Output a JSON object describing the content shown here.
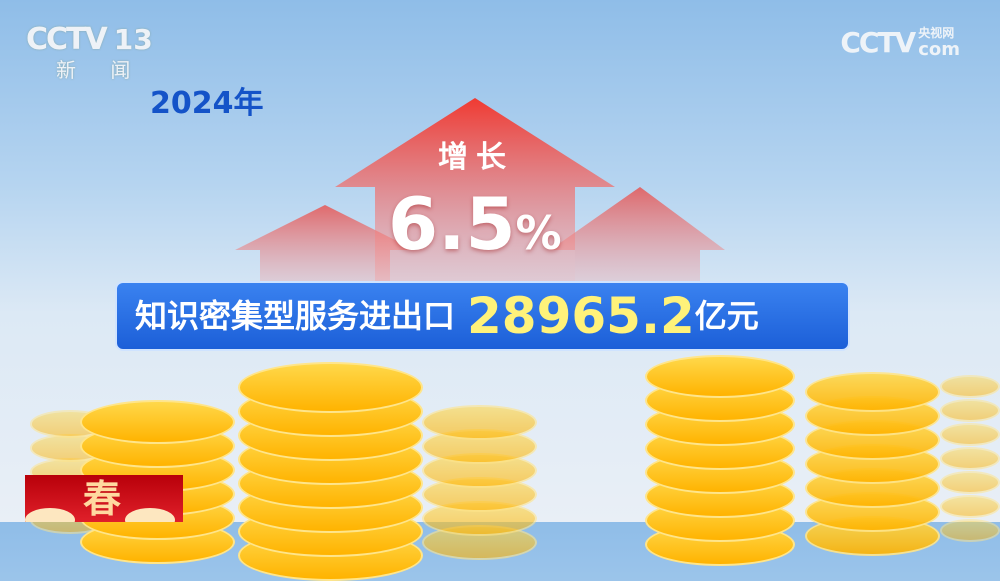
{
  "channel": {
    "logo": "CCTV",
    "number": "13",
    "name": "新 闻"
  },
  "watermark": {
    "logo": "CCTV",
    "site_cn": "央视网",
    "site": "com"
  },
  "year": "2024年",
  "growth": {
    "label": "增长",
    "value": "6.5",
    "unit": "%"
  },
  "headline": {
    "label": "知识密集型服务进出口",
    "value": "28965.2",
    "unit": "亿元"
  },
  "badge": {
    "glyph": "春"
  },
  "colors": {
    "year": "#1453c8",
    "band": "#2a70e4",
    "value": "#fff27a",
    "arrow": "#f0463c",
    "coin": "#ffc21a"
  }
}
